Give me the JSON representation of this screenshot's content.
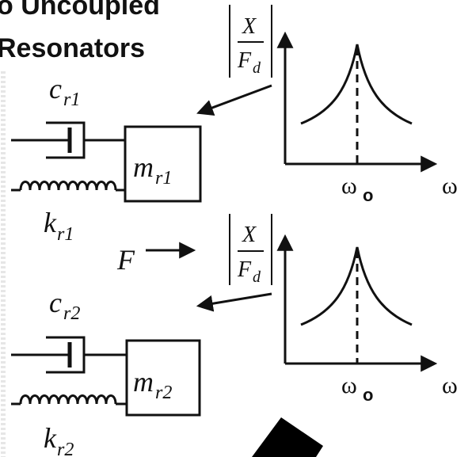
{
  "title": {
    "line1": "o Uncoupled",
    "line2": "Resonators"
  },
  "force_label": "F",
  "resonator_1": {
    "damper_base": "c",
    "damper_sub": "r1",
    "mass_base": "m",
    "mass_sub": "r1",
    "spring_base": "k",
    "spring_sub": "r1"
  },
  "resonator_2": {
    "damper_base": "c",
    "damper_sub": "r2",
    "mass_base": "m",
    "mass_sub": "r2",
    "spring_base": "k",
    "spring_sub": "r2"
  },
  "response_plot": {
    "y_label_num": "X",
    "y_label_den_base": "F",
    "y_label_den_sub": "d",
    "x_label": "ω",
    "peak_label": "ω",
    "peak_label_sub": "o"
  },
  "colors": {
    "ink": "#111111",
    "background": "#ffffff"
  }
}
